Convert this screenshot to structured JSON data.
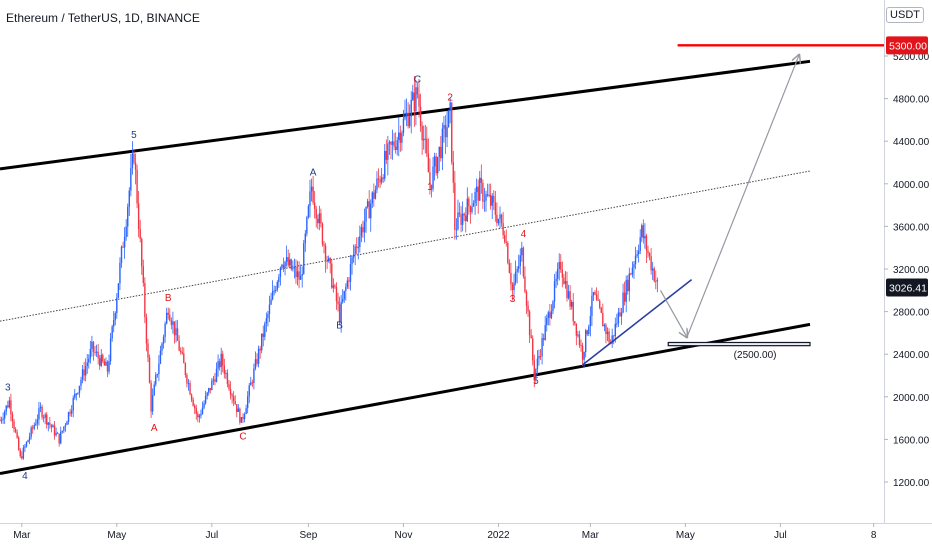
{
  "header": {
    "title": "Ethereum / TetherUS, 1D, BINANCE",
    "currency": "USDT"
  },
  "colors": {
    "up": "#2962ff",
    "down": "#f23645",
    "channel": "#000000",
    "target_line": "#ff0000",
    "trendline": "#2a3fa0",
    "arrow": "#9598a1",
    "current_price_bg": "#131722",
    "target_bg": "#e0141a",
    "wave_blue": "#1e3a8a",
    "wave_red": "#e0141a"
  },
  "chart_data": {
    "type": "candlestick",
    "symbol": "Ethereum / TetherUS",
    "interval": "1D",
    "exchange": "BINANCE",
    "x_ticks": [
      "Mar",
      "May",
      "Jul",
      "Sep",
      "Nov",
      "2022",
      "Mar",
      "May",
      "Jul",
      "8"
    ],
    "y_ticks": [
      "1200.00",
      "1600.00",
      "2000.00",
      "2400.00",
      "2800.00",
      "3200.00",
      "3600.00",
      "4000.00",
      "4400.00",
      "4800.00",
      "5200.00"
    ],
    "ylim": [
      800,
      5600
    ],
    "current_price": "3026.41",
    "target_price": "5300.00",
    "support_label": "(2500.00)",
    "price_path": [
      {
        "date": "2021-02-15",
        "price": 1780
      },
      {
        "date": "2021-02-21",
        "price": 1960
      },
      {
        "date": "2021-02-28",
        "price": 1420
      },
      {
        "date": "2021-03-13",
        "price": 1880
      },
      {
        "date": "2021-03-25",
        "price": 1600
      },
      {
        "date": "2021-04-15",
        "price": 2450
      },
      {
        "date": "2021-04-25",
        "price": 2250
      },
      {
        "date": "2021-05-12",
        "price": 4300
      },
      {
        "date": "2021-05-23",
        "price": 1900
      },
      {
        "date": "2021-06-03",
        "price": 2850
      },
      {
        "date": "2021-06-22",
        "price": 1790
      },
      {
        "date": "2021-07-07",
        "price": 2350
      },
      {
        "date": "2021-07-20",
        "price": 1760
      },
      {
        "date": "2021-08-15",
        "price": 3300
      },
      {
        "date": "2021-08-27",
        "price": 3100
      },
      {
        "date": "2021-09-03",
        "price": 3980
      },
      {
        "date": "2021-09-21",
        "price": 2760
      },
      {
        "date": "2021-10-01",
        "price": 3400
      },
      {
        "date": "2021-10-20",
        "price": 4200
      },
      {
        "date": "2021-11-10",
        "price": 4850
      },
      {
        "date": "2021-11-18",
        "price": 4000
      },
      {
        "date": "2021-12-01",
        "price": 4650
      },
      {
        "date": "2021-12-04",
        "price": 3600
      },
      {
        "date": "2021-12-20",
        "price": 3950
      },
      {
        "date": "2021-12-28",
        "price": 3800
      },
      {
        "date": "2022-01-05",
        "price": 3550
      },
      {
        "date": "2022-01-10",
        "price": 3000
      },
      {
        "date": "2022-01-16",
        "price": 3350
      },
      {
        "date": "2022-01-24",
        "price": 2200
      },
      {
        "date": "2022-02-10",
        "price": 3250
      },
      {
        "date": "2022-02-24",
        "price": 2400
      },
      {
        "date": "2022-03-03",
        "price": 2950
      },
      {
        "date": "2022-03-14",
        "price": 2500
      },
      {
        "date": "2022-04-03",
        "price": 3550
      },
      {
        "date": "2022-04-13",
        "price": 3050
      }
    ],
    "wave_labels": [
      {
        "text": "3",
        "date": "2021-02-20",
        "price": 2060,
        "color": "blue"
      },
      {
        "text": "4",
        "date": "2021-03-03",
        "price": 1230,
        "color": "blue"
      },
      {
        "text": "5",
        "date": "2021-05-12",
        "price": 4430,
        "color": "blue"
      },
      {
        "text": "A",
        "date": "2021-05-25",
        "price": 1680,
        "color": "red"
      },
      {
        "text": "B",
        "date": "2021-06-03",
        "price": 2900,
        "color": "red"
      },
      {
        "text": "C",
        "date": "2021-07-21",
        "price": 1600,
        "color": "red"
      },
      {
        "text": "A",
        "date": "2021-09-04",
        "price": 4080,
        "color": "blue"
      },
      {
        "text": "B",
        "date": "2021-09-21",
        "price": 2640,
        "color": "blue"
      },
      {
        "text": "C",
        "date": "2021-11-10",
        "price": 4950,
        "color": "blue"
      },
      {
        "text": "1",
        "date": "2021-11-18",
        "price": 3940,
        "color": "red"
      },
      {
        "text": "2",
        "date": "2021-12-01",
        "price": 4780,
        "color": "red"
      },
      {
        "text": "3",
        "date": "2022-01-10",
        "price": 2890,
        "color": "red"
      },
      {
        "text": "4",
        "date": "2022-01-17",
        "price": 3500,
        "color": "red"
      },
      {
        "text": "5",
        "date": "2022-01-25",
        "price": 2120,
        "color": "red"
      }
    ],
    "drawings": {
      "channel_upper": [
        {
          "date": "2021-02-15",
          "price": 4140
        },
        {
          "date": "2022-07-20",
          "price": 5150
        }
      ],
      "channel_lower": [
        {
          "date": "2021-02-15",
          "price": 1280
        },
        {
          "date": "2022-07-20",
          "price": 2680
        }
      ],
      "channel_mid": [
        {
          "date": "2021-02-15",
          "price": 2710
        },
        {
          "date": "2022-07-20",
          "price": 4120
        }
      ],
      "trendline": [
        {
          "date": "2022-02-24",
          "price": 2300
        },
        {
          "date": "2022-05-05",
          "price": 3100
        }
      ],
      "support_box": [
        {
          "date": "2022-04-20",
          "price": 2510
        },
        {
          "date": "2022-07-20",
          "price": 2480
        }
      ],
      "target_line": {
        "from": "2022-04-26",
        "to": "2022-10-15",
        "price": 5300
      },
      "arrow_down": [
        {
          "date": "2022-04-15",
          "price": 3000
        },
        {
          "date": "2022-05-02",
          "price": 2560
        }
      ],
      "arrow_up": [
        {
          "date": "2022-05-02",
          "price": 2560
        },
        {
          "date": "2022-07-13",
          "price": 5210
        }
      ]
    }
  }
}
